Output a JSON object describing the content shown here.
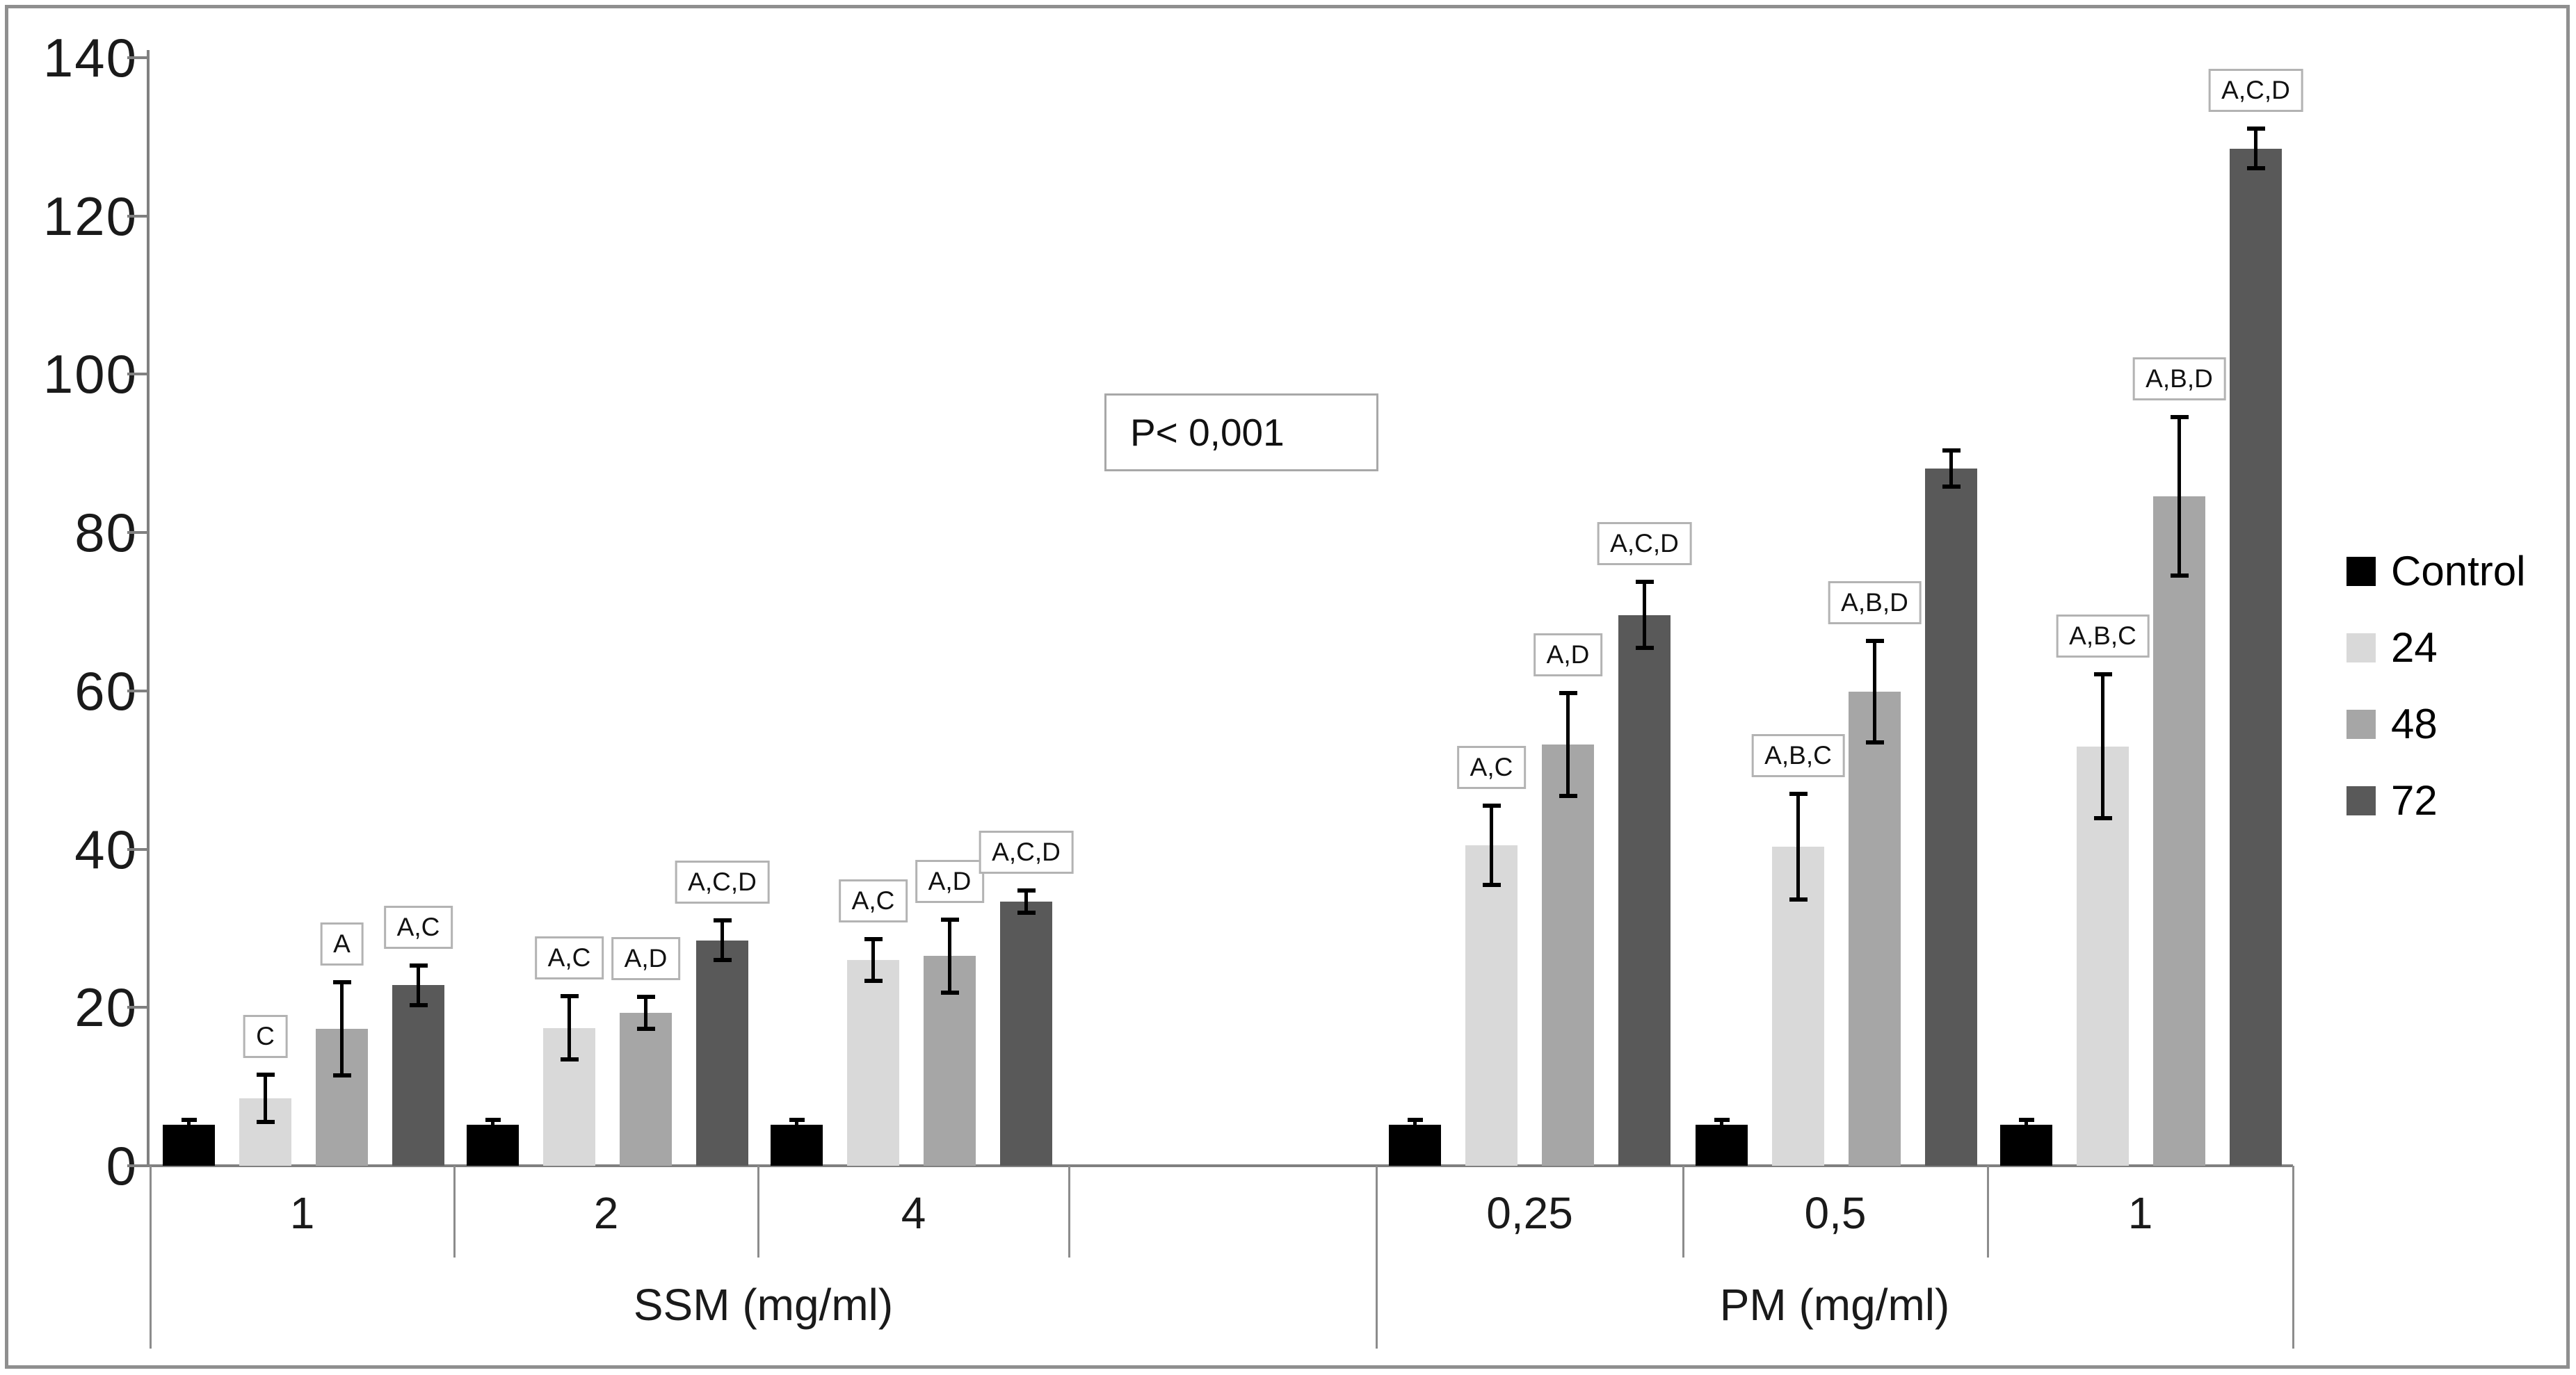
{
  "annotation": {
    "text": "P< 0,001"
  },
  "legend": {
    "items": [
      {
        "label": "Control",
        "color": "#000000"
      },
      {
        "label": "24",
        "color": "#d9d9d9"
      },
      {
        "label": "48",
        "color": "#a6a6a6"
      },
      {
        "label": "72",
        "color": "#595959"
      }
    ]
  },
  "chart_data": {
    "type": "bar",
    "title": "",
    "xlabel": "",
    "ylabel": "",
    "ylim": [
      0,
      140
    ],
    "yticks": [
      0,
      20,
      40,
      60,
      80,
      100,
      120,
      140
    ],
    "grid": false,
    "legend_position": "right",
    "error_bars": true,
    "series_names": [
      "Control",
      "24",
      "48",
      "72"
    ],
    "series_colors": [
      "#000000",
      "#d9d9d9",
      "#a6a6a6",
      "#595959"
    ],
    "axis_groups": [
      "SSM (mg/ml)",
      "PM (mg/ml)"
    ],
    "groups": [
      {
        "axis_group": "SSM (mg/ml)",
        "category": "1",
        "bars": [
          {
            "series": "Control",
            "value": 5.2,
            "error": 0.6,
            "sig": ""
          },
          {
            "series": "24",
            "value": 8.5,
            "error": 3.0,
            "sig": "C"
          },
          {
            "series": "48",
            "value": 17.3,
            "error": 5.9,
            "sig": "A"
          },
          {
            "series": "72",
            "value": 22.8,
            "error": 2.5,
            "sig": "A,C"
          }
        ]
      },
      {
        "axis_group": "SSM (mg/ml)",
        "category": "2",
        "bars": [
          {
            "series": "Control",
            "value": 5.2,
            "error": 0.6,
            "sig": ""
          },
          {
            "series": "24",
            "value": 17.4,
            "error": 4.0,
            "sig": "A,C"
          },
          {
            "series": "48",
            "value": 19.3,
            "error": 2.0,
            "sig": "A,D"
          },
          {
            "series": "72",
            "value": 28.5,
            "error": 2.5,
            "sig": "A,C,D"
          }
        ]
      },
      {
        "axis_group": "SSM (mg/ml)",
        "category": "4",
        "bars": [
          {
            "series": "Control",
            "value": 5.2,
            "error": 0.6,
            "sig": ""
          },
          {
            "series": "24",
            "value": 26.0,
            "error": 2.6,
            "sig": "A,C"
          },
          {
            "series": "48",
            "value": 26.5,
            "error": 4.6,
            "sig": "A,D"
          },
          {
            "series": "72",
            "value": 33.4,
            "error": 1.4,
            "sig": "A,C,D"
          }
        ]
      },
      {
        "axis_group": "PM (mg/ml)",
        "category": "0,25",
        "bars": [
          {
            "series": "Control",
            "value": 5.2,
            "error": 0.6,
            "sig": ""
          },
          {
            "series": "24",
            "value": 40.5,
            "error": 5.0,
            "sig": "A,C"
          },
          {
            "series": "48",
            "value": 53.2,
            "error": 6.5,
            "sig": "A,D"
          },
          {
            "series": "72",
            "value": 69.6,
            "error": 4.2,
            "sig": "A,C,D"
          }
        ]
      },
      {
        "axis_group": "PM (mg/ml)",
        "category": "0,5",
        "bars": [
          {
            "series": "Control",
            "value": 5.2,
            "error": 0.6,
            "sig": ""
          },
          {
            "series": "24",
            "value": 40.3,
            "error": 6.7,
            "sig": "A,B,C"
          },
          {
            "series": "48",
            "value": 59.9,
            "error": 6.4,
            "sig": "A,B,D"
          },
          {
            "series": "72",
            "value": 88.1,
            "error": 2.3,
            "sig": ""
          }
        ]
      },
      {
        "axis_group": "PM (mg/ml)",
        "category": "1",
        "bars": [
          {
            "series": "Control",
            "value": 5.2,
            "error": 0.6,
            "sig": ""
          },
          {
            "series": "24",
            "value": 53.0,
            "error": 9.1,
            "sig": "A,B,C"
          },
          {
            "series": "48",
            "value": 84.6,
            "error": 10.0,
            "sig": "A,B,D"
          },
          {
            "series": "72",
            "value": 128.5,
            "error": 2.5,
            "sig": "A,C,D"
          }
        ]
      }
    ]
  }
}
